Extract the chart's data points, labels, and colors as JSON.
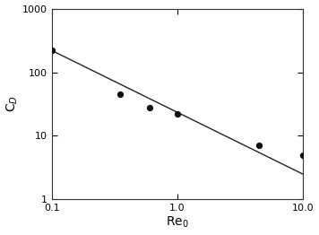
{
  "title": "",
  "xlabel": "Re$_0$",
  "ylabel": "C$_D$",
  "xlim": [
    0.1,
    10
  ],
  "ylim": [
    1,
    1000
  ],
  "line_x": [
    0.1,
    10
  ],
  "line_y": [
    220,
    2.5
  ],
  "scatter_x": [
    0.1,
    0.35,
    0.6,
    1.0,
    4.5,
    10.0
  ],
  "scatter_y": [
    220,
    45,
    28,
    22,
    7,
    5
  ],
  "line_color": "#222222",
  "scatter_color": "#111111",
  "scatter_size": 18,
  "line_width": 1.0,
  "background_color": "#ffffff",
  "tick_label_fontsize": 8,
  "axis_label_fontsize": 10,
  "xticks": [
    0.1,
    1,
    10
  ],
  "yticks": [
    1,
    10,
    100,
    1000
  ]
}
